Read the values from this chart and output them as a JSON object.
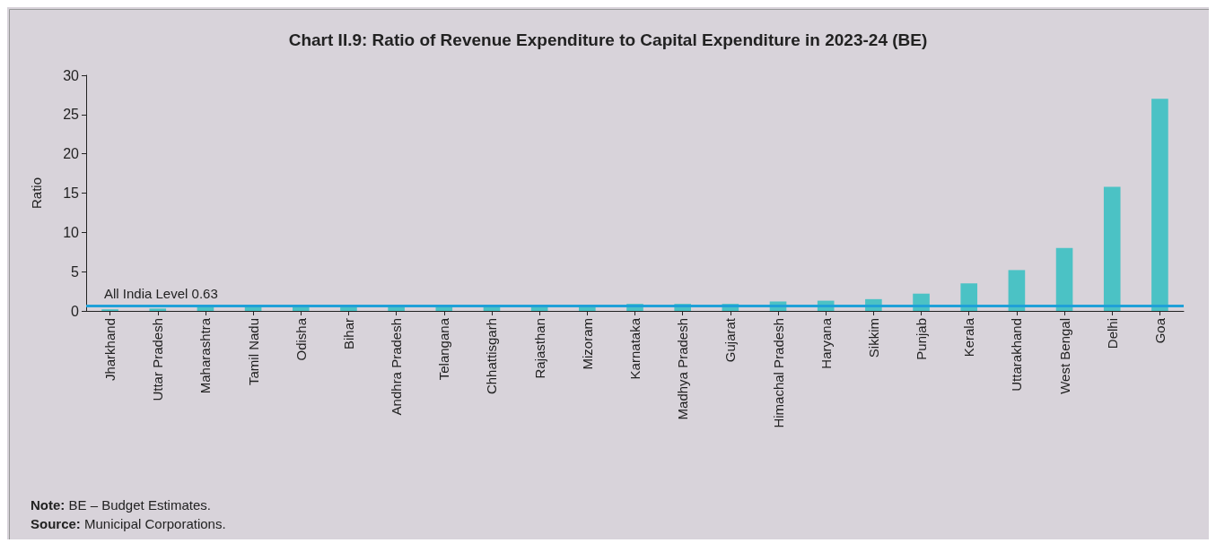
{
  "chart_data": {
    "type": "bar",
    "title": "Chart II.9: Ratio of Revenue Expenditure to Capital Expenditure in 2023-24 (BE)",
    "ylabel": "Ratio",
    "categories": [
      "Jharkhand",
      "Uttar Pradesh",
      "Maharashtra",
      "Tamil Nadu",
      "Odisha",
      "Bihar",
      "Andhra Pradesh",
      "Telangana",
      "Chhattisgarh",
      "Rajasthan",
      "Mizoram",
      "Karnataka",
      "Madhya Pradesh",
      "Gujarat",
      "Himachal Pradesh",
      "Haryana",
      "Sikkim",
      "Punjab",
      "Kerala",
      "Uttarakhand",
      "West Bengal",
      "Delhi",
      "Goa"
    ],
    "values": [
      0.2,
      0.3,
      0.7,
      0.7,
      0.7,
      0.7,
      0.7,
      0.7,
      0.7,
      0.7,
      0.8,
      0.9,
      0.9,
      0.9,
      1.2,
      1.3,
      1.5,
      2.2,
      3.5,
      5.2,
      8.0,
      15.8,
      27.0
    ],
    "color": "#4bc2c5",
    "ylim": [
      0,
      30
    ],
    "yticks": [
      0,
      5,
      10,
      15,
      20,
      25,
      30
    ],
    "grid": false,
    "ref_lines": [
      {
        "axis": "y",
        "value": 0.63,
        "label": "All India Level 0.63",
        "color": "#1fa0d8"
      }
    ],
    "annotations": [
      "Note: BE – Budget Estimates.",
      "Source: Municipal Corporations."
    ]
  }
}
